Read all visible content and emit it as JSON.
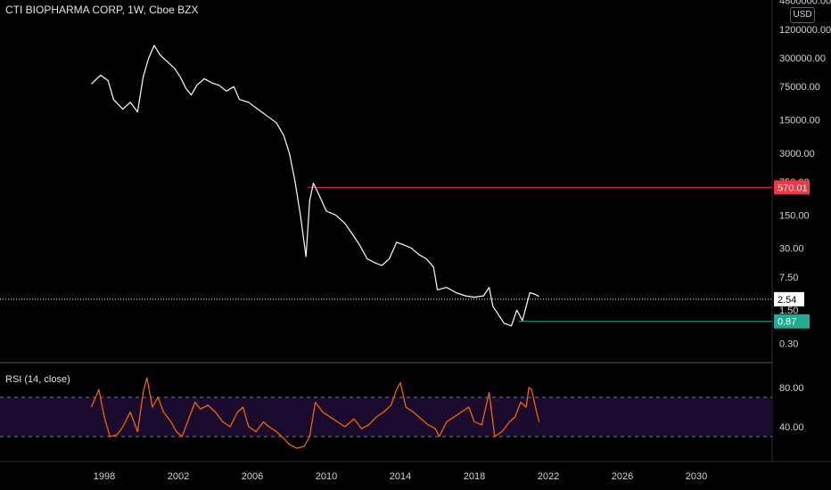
{
  "header": {
    "title": "CTI BIOPHARMA CORP, 1W, Cboe BZX",
    "currency": "USD"
  },
  "rsi_panel": {
    "title": "RSI (14, close)"
  },
  "chart_data": [
    {
      "type": "line",
      "title": "CTI BIOPHARMA CORP, 1W, Cboe BZX",
      "yscale": "log",
      "y_ticks": [
        "4800000.00",
        "1200000.00",
        "300000.00",
        "75000.00",
        "15000.00",
        "3000.00",
        "750.00",
        "150.00",
        "30.00",
        "7.50",
        "1.50",
        "0.30"
      ],
      "x_ticks": [
        "1998",
        "2002",
        "2006",
        "2010",
        "2014",
        "2018",
        "2022",
        "2026",
        "2030"
      ],
      "series": [
        {
          "name": "",
          "color": "#ffffff",
          "points": [
            [
              1997.3,
              85000
            ],
            [
              1997.8,
              130000
            ],
            [
              1998.2,
              100000
            ],
            [
              1998.5,
              40000
            ],
            [
              1999.0,
              25000
            ],
            [
              1999.4,
              35000
            ],
            [
              1999.8,
              22000
            ],
            [
              2000.1,
              120000
            ],
            [
              2000.4,
              300000
            ],
            [
              2000.7,
              550000
            ],
            [
              2001.0,
              350000
            ],
            [
              2001.4,
              250000
            ],
            [
              2001.8,
              180000
            ],
            [
              2002.1,
              120000
            ],
            [
              2002.4,
              70000
            ],
            [
              2002.7,
              50000
            ],
            [
              2003.0,
              80000
            ],
            [
              2003.4,
              110000
            ],
            [
              2003.8,
              90000
            ],
            [
              2004.2,
              80000
            ],
            [
              2004.6,
              60000
            ],
            [
              2005.0,
              75000
            ],
            [
              2005.3,
              40000
            ],
            [
              2005.8,
              35000
            ],
            [
              2006.3,
              25000
            ],
            [
              2006.8,
              18000
            ],
            [
              2007.3,
              13000
            ],
            [
              2007.7,
              7000
            ],
            [
              2008.0,
              3000
            ],
            [
              2008.3,
              800
            ],
            [
              2008.6,
              150
            ],
            [
              2008.9,
              20
            ],
            [
              2009.1,
              300
            ],
            [
              2009.3,
              700
            ],
            [
              2009.6,
              400
            ],
            [
              2010.0,
              180
            ],
            [
              2010.5,
              150
            ],
            [
              2011.0,
              100
            ],
            [
              2011.4,
              60
            ],
            [
              2011.8,
              35
            ],
            [
              2012.2,
              18
            ],
            [
              2012.6,
              15
            ],
            [
              2013.0,
              13
            ],
            [
              2013.4,
              18
            ],
            [
              2013.8,
              40
            ],
            [
              2014.2,
              35
            ],
            [
              2014.6,
              30
            ],
            [
              2015.0,
              22
            ],
            [
              2015.4,
              18
            ],
            [
              2015.8,
              12
            ],
            [
              2016.0,
              4
            ],
            [
              2016.5,
              4.5
            ],
            [
              2017.0,
              3.5
            ],
            [
              2017.5,
              3
            ],
            [
              2018.0,
              2.8
            ],
            [
              2018.5,
              3
            ],
            [
              2018.8,
              4.5
            ],
            [
              2019.0,
              1.8
            ],
            [
              2019.3,
              1.2
            ],
            [
              2019.6,
              0.8
            ],
            [
              2020.0,
              0.7
            ],
            [
              2020.3,
              1.5
            ],
            [
              2020.6,
              0.9
            ],
            [
              2020.9,
              2.5
            ],
            [
              2021.0,
              3.5
            ],
            [
              2021.3,
              3.2
            ],
            [
              2021.5,
              2.9
            ]
          ]
        }
      ],
      "annotations": [
        {
          "label": "570.01",
          "value": 570.01,
          "from_x": 2009.0,
          "color": "#f23645"
        },
        {
          "label": "0.87",
          "value": 0.87,
          "from_x": 2020.4,
          "color": "#22ab94"
        },
        {
          "label": "2.54",
          "value": 2.54,
          "style": "dotted",
          "color": "#ffffff"
        }
      ]
    },
    {
      "type": "line",
      "title": "RSI (14, close)",
      "y_ticks": [
        "80.00",
        "40.00"
      ],
      "band": [
        30,
        70
      ],
      "band_color": "#1a0a2e",
      "series": [
        {
          "name": "",
          "color": "#ff6d00",
          "points": [
            [
              1997.3,
              60
            ],
            [
              1997.7,
              78
            ],
            [
              1998.0,
              50
            ],
            [
              1998.3,
              30
            ],
            [
              1998.7,
              32
            ],
            [
              1999.0,
              40
            ],
            [
              1999.4,
              55
            ],
            [
              1999.8,
              35
            ],
            [
              2000.1,
              75
            ],
            [
              2000.3,
              90
            ],
            [
              2000.6,
              60
            ],
            [
              2000.9,
              70
            ],
            [
              2001.2,
              55
            ],
            [
              2001.6,
              45
            ],
            [
              2001.9,
              35
            ],
            [
              2002.2,
              30
            ],
            [
              2002.6,
              50
            ],
            [
              2002.9,
              65
            ],
            [
              2003.2,
              58
            ],
            [
              2003.6,
              62
            ],
            [
              2004.0,
              55
            ],
            [
              2004.4,
              45
            ],
            [
              2004.8,
              40
            ],
            [
              2005.2,
              55
            ],
            [
              2005.5,
              60
            ],
            [
              2005.8,
              40
            ],
            [
              2006.2,
              35
            ],
            [
              2006.6,
              45
            ],
            [
              2006.9,
              40
            ],
            [
              2007.3,
              35
            ],
            [
              2007.7,
              28
            ],
            [
              2008.0,
              22
            ],
            [
              2008.4,
              18
            ],
            [
              2008.8,
              20
            ],
            [
              2009.1,
              30
            ],
            [
              2009.4,
              65
            ],
            [
              2009.8,
              55
            ],
            [
              2010.2,
              50
            ],
            [
              2010.6,
              45
            ],
            [
              2011.0,
              40
            ],
            [
              2011.5,
              48
            ],
            [
              2011.9,
              38
            ],
            [
              2012.3,
              42
            ],
            [
              2012.7,
              50
            ],
            [
              2013.1,
              55
            ],
            [
              2013.5,
              62
            ],
            [
              2013.8,
              78
            ],
            [
              2014.0,
              85
            ],
            [
              2014.3,
              60
            ],
            [
              2014.7,
              55
            ],
            [
              2015.0,
              50
            ],
            [
              2015.5,
              42
            ],
            [
              2015.9,
              38
            ],
            [
              2016.1,
              30
            ],
            [
              2016.5,
              45
            ],
            [
              2016.9,
              50
            ],
            [
              2017.3,
              55
            ],
            [
              2017.7,
              60
            ],
            [
              2018.0,
              45
            ],
            [
              2018.4,
              42
            ],
            [
              2018.8,
              75
            ],
            [
              2019.1,
              30
            ],
            [
              2019.5,
              35
            ],
            [
              2019.9,
              45
            ],
            [
              2020.2,
              50
            ],
            [
              2020.5,
              65
            ],
            [
              2020.8,
              60
            ],
            [
              2020.95,
              80
            ],
            [
              2021.1,
              78
            ],
            [
              2021.3,
              60
            ],
            [
              2021.5,
              45
            ]
          ]
        }
      ]
    }
  ]
}
